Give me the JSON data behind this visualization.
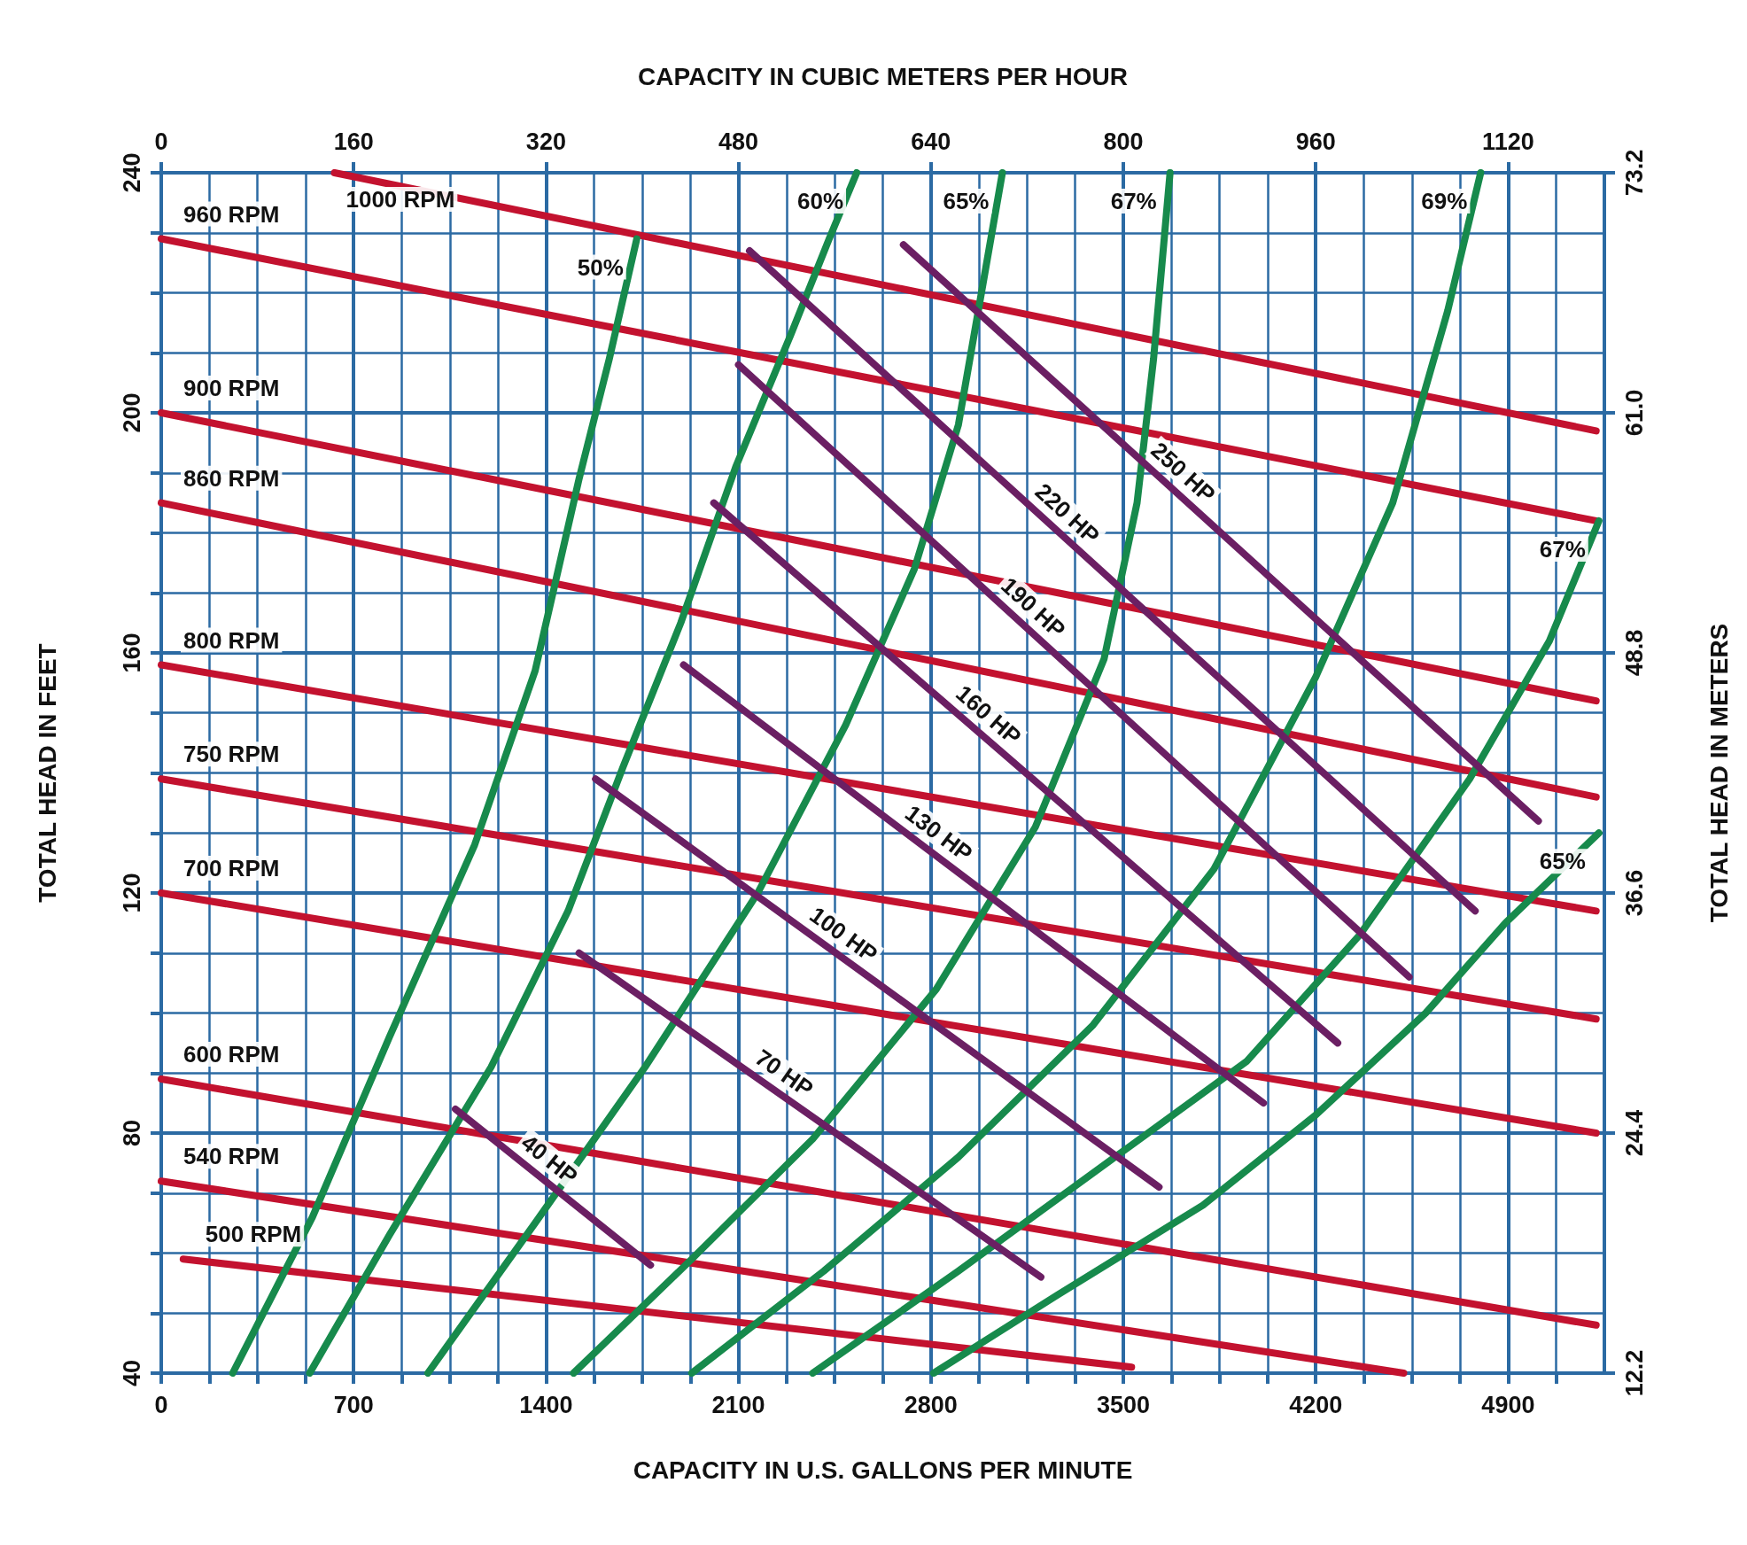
{
  "chart_data": {
    "type": "line",
    "xlabel": "CAPACITY IN U.S. GALLONS PER MINUTE",
    "x2label": "CAPACITY IN CUBIC METERS PER HOUR",
    "ylabel": "TOTAL HEAD IN FEET",
    "y2label": "TOTAL HEAD IN METERS",
    "xlim": [
      0,
      5250
    ],
    "xticks": [
      0,
      {
        "value": 175,
        "label": null
      },
      {
        "value": 350,
        "label": null
      },
      {
        "value": 525,
        "label": null
      },
      700,
      {
        "value": 875,
        "label": null
      },
      {
        "value": 1050,
        "label": null
      },
      {
        "value": 1225,
        "label": null
      },
      1400,
      {
        "value": 1575,
        "label": null
      },
      {
        "value": 1750,
        "label": null
      },
      {
        "value": 1925,
        "label": null
      },
      2100,
      {
        "value": 2275,
        "label": null
      },
      {
        "value": 2450,
        "label": null
      },
      {
        "value": 2625,
        "label": null
      },
      2800,
      {
        "value": 2975,
        "label": null
      },
      {
        "value": 3150,
        "label": null
      },
      {
        "value": 3325,
        "label": null
      },
      3500,
      {
        "value": 3675,
        "label": null
      },
      {
        "value": 3850,
        "label": null
      },
      {
        "value": 4025,
        "label": null
      },
      4200,
      {
        "value": 4375,
        "label": null
      },
      {
        "value": 4550,
        "label": null
      },
      {
        "value": 4725,
        "label": null
      },
      4900,
      {
        "value": 5075,
        "label": null
      }
    ],
    "x2lim": [
      0,
      1200
    ],
    "x2ticks": [
      0,
      160,
      320,
      480,
      640,
      800,
      960,
      1120
    ],
    "ylim": [
      40,
      240
    ],
    "yticks": [
      40,
      {
        "value": 50,
        "label": null
      },
      {
        "value": 60,
        "label": null
      },
      {
        "value": 70,
        "label": null
      },
      80,
      {
        "value": 90,
        "label": null
      },
      {
        "value": 100,
        "label": null
      },
      {
        "value": 110,
        "label": null
      },
      120,
      {
        "value": 130,
        "label": null
      },
      {
        "value": 140,
        "label": null
      },
      {
        "value": 150,
        "label": null
      },
      160,
      {
        "value": 170,
        "label": null
      },
      {
        "value": 180,
        "label": null
      },
      {
        "value": 190,
        "label": null
      },
      200,
      {
        "value": 210,
        "label": null
      },
      {
        "value": 220,
        "label": null
      },
      {
        "value": 230,
        "label": null
      },
      240
    ],
    "y2lim": [
      12.2,
      73.2
    ],
    "y2ticks": [
      12.2,
      24.4,
      36.6,
      48.8,
      {
        "value": 61.0,
        "label": "61.0"
      },
      73.2
    ],
    "grid": true,
    "legend": false,
    "marker": "none",
    "line_style": "solid",
    "series": [
      {
        "name": "1000 RPM",
        "color": "#c3122f",
        "x": [
          630,
          5220
        ],
        "values": [
          240,
          197
        ]
      },
      {
        "name": "960 RPM",
        "color": "#c3122f",
        "x": [
          0,
          5220
        ],
        "values": [
          229,
          182
        ]
      },
      {
        "name": "900 RPM",
        "color": "#c3122f",
        "x": [
          0,
          5220
        ],
        "values": [
          200,
          152
        ]
      },
      {
        "name": "860 RPM",
        "color": "#c3122f",
        "x": [
          0,
          5220
        ],
        "values": [
          185,
          136
        ]
      },
      {
        "name": "800 RPM",
        "color": "#c3122f",
        "x": [
          0,
          5220
        ],
        "values": [
          158,
          117
        ]
      },
      {
        "name": "750 RPM",
        "color": "#c3122f",
        "x": [
          0,
          5220
        ],
        "values": [
          139,
          99
        ]
      },
      {
        "name": "700 RPM",
        "color": "#c3122f",
        "x": [
          0,
          5220
        ],
        "values": [
          120,
          80
        ]
      },
      {
        "name": "600 RPM",
        "color": "#c3122f",
        "x": [
          0,
          5220
        ],
        "values": [
          89,
          48
        ]
      },
      {
        "name": "540 RPM",
        "color": "#c3122f",
        "x": [
          0,
          4520
        ],
        "values": [
          72,
          40
        ]
      },
      {
        "name": "500 RPM",
        "color": "#c3122f",
        "x": [
          80,
          3530
        ],
        "values": [
          59,
          41
        ]
      },
      {
        "name": "50%",
        "color": "#178a4c",
        "x": [
          1730,
          1630,
          1520,
          1360,
          1140,
          830,
          550,
          260
        ],
        "values": [
          229,
          209,
          189,
          157,
          128,
          96,
          66,
          40
        ]
      },
      {
        "name": "60%",
        "color": "#178a4c",
        "x": [
          2530,
          2430,
          2290,
          2090,
          1890,
          1680,
          1480,
          1200,
          830,
          540
        ],
        "values": [
          240,
          229,
          213,
          191,
          165,
          141,
          117,
          91,
          63,
          40
        ]
      },
      {
        "name": "65%",
        "color": "#178a4c",
        "x": [
          3060,
          2980,
          2900,
          2740,
          2490,
          2170,
          1760,
          1360,
          970
        ],
        "values": [
          240,
          219,
          198,
          174,
          148,
          120,
          91,
          65,
          40
        ]
      },
      {
        "name": "67%",
        "color": "#178a4c",
        "x": [
          3670,
          3610,
          3550,
          3430,
          3180,
          2820,
          2370,
          1930,
          1500
        ],
        "values": [
          240,
          209,
          185,
          159,
          131,
          104,
          79,
          59,
          40
        ]
      },
      {
        "name": "69%",
        "color": "#178a4c",
        "x": [
          4800,
          4680,
          4480,
          4200,
          3830,
          3390,
          2900,
          2410,
          1930
        ],
        "values": [
          240,
          217,
          185,
          156,
          124,
          98,
          76,
          57,
          40
        ]
      },
      {
        "name": "67%",
        "color": "#178a4c",
        "x": [
          5230,
          5050,
          4760,
          4360,
          3950,
          3470,
          2900,
          2370
        ],
        "values": [
          182,
          162,
          139,
          113,
          92,
          76,
          57,
          40
        ]
      },
      {
        "name": "65%",
        "color": "#178a4c",
        "x": [
          5230,
          4890,
          4600,
          4200,
          3790,
          3260,
          2810
        ],
        "values": [
          130,
          115,
          100,
          83,
          68,
          53,
          40
        ]
      },
      {
        "name": "40 HP",
        "color": "#6b1f63",
        "x": [
          1070,
          1780
        ],
        "values": [
          84,
          58
        ]
      },
      {
        "name": "70 HP",
        "color": "#6b1f63",
        "x": [
          1520,
          3200
        ],
        "values": [
          110,
          56
        ]
      },
      {
        "name": "100 HP",
        "color": "#6b1f63",
        "x": [
          1580,
          3630
        ],
        "values": [
          139,
          71
        ]
      },
      {
        "name": "130 HP",
        "color": "#6b1f63",
        "x": [
          1900,
          4010
        ],
        "values": [
          158,
          85
        ]
      },
      {
        "name": "160 HP",
        "color": "#6b1f63",
        "x": [
          2010,
          4280
        ],
        "values": [
          185,
          95
        ]
      },
      {
        "name": "190 HP",
        "color": "#6b1f63",
        "x": [
          2100,
          4540
        ],
        "values": [
          208,
          106
        ]
      },
      {
        "name": "220 HP",
        "color": "#6b1f63",
        "x": [
          2140,
          4780
        ],
        "values": [
          227,
          117
        ]
      },
      {
        "name": "250 HP",
        "color": "#6b1f63",
        "x": [
          2700,
          5010
        ],
        "values": [
          228,
          132
        ]
      }
    ]
  }
}
